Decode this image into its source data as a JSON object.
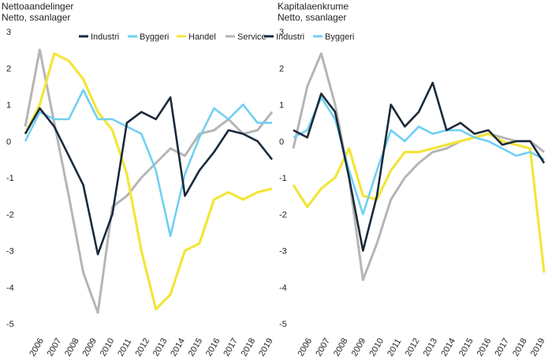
{
  "chart_data": [
    {
      "type": "line",
      "title": "Nettoaandelinger",
      "subtitle": "Netto, ssanlager",
      "ylim": [
        -5,
        3
      ],
      "yticks": [
        -5,
        -4,
        -3,
        -2,
        -1,
        0,
        1,
        2,
        3
      ],
      "ytick_labels": [
        "-5",
        "-4",
        "-3",
        "-2",
        "-1",
        "0",
        "1",
        "2",
        "3"
      ],
      "x_tick_labels": [
        "2006",
        "2007",
        "2008",
        "2009",
        "2010",
        "2011",
        "2012",
        "2013",
        "2014",
        "2015",
        "2016",
        "2017",
        "2018",
        "2019"
      ],
      "colors": {
        "Industri": "#1b2a3a",
        "Byggeri": "#6fd0f2",
        "Handel": "#f3e53a",
        "Service": "#b5b5b5"
      },
      "legend": [
        "Industri",
        "Byggeri",
        "Handel",
        "Service"
      ],
      "series": [
        {
          "name": "Industri",
          "values": [
            0.2,
            0.9,
            0.4,
            -0.4,
            -1.2,
            -3.1,
            -2.0,
            0.5,
            0.8,
            0.6,
            1.2,
            -1.5,
            -0.8,
            -0.3,
            0.3,
            0.2,
            0.0,
            -0.5
          ]
        },
        {
          "name": "Byggeri",
          "values": [
            0.0,
            0.8,
            0.6,
            0.6,
            1.4,
            0.6,
            0.6,
            0.4,
            0.2,
            -0.8,
            -2.6,
            -0.9,
            0.1,
            0.9,
            0.6,
            1.0,
            0.5,
            0.5
          ]
        },
        {
          "name": "Handel",
          "values": [
            0.2,
            1.0,
            2.4,
            2.2,
            1.7,
            0.8,
            0.3,
            -0.9,
            -3.0,
            -4.6,
            -4.2,
            -3.0,
            -2.8,
            -1.6,
            -1.4,
            -1.6,
            -1.4,
            -1.3
          ]
        },
        {
          "name": "Service",
          "values": [
            0.4,
            2.5,
            0.5,
            -1.5,
            -3.6,
            -4.7,
            -1.8,
            -1.5,
            -1.0,
            -0.6,
            -0.2,
            -0.4,
            0.2,
            0.3,
            0.6,
            0.2,
            0.3,
            0.8
          ]
        }
      ]
    },
    {
      "type": "line",
      "title": "Kapitalaenkrume",
      "subtitle": "Netto, ssanlager",
      "ylim": [
        -5,
        3
      ],
      "yticks": [
        -5,
        -4,
        -3,
        -2,
        -1,
        0,
        1,
        2,
        3
      ],
      "ytick_labels": [
        "-5",
        "-4",
        "-3",
        "-2",
        "-1",
        "0",
        "1",
        "2",
        "3"
      ],
      "x_tick_labels": [
        "2006",
        "2007",
        "2008",
        "2009",
        "2010",
        "2011",
        "2012",
        "2013",
        "2014",
        "2015",
        "2016",
        "2017",
        "2018",
        "2019"
      ],
      "colors": {
        "Industri": "#1b2a3a",
        "Byggeri": "#6fd0f2",
        "Handel": "#f3e53a",
        "Service": "#b5b5b5"
      },
      "legend": [
        "Industri",
        "Byggeri"
      ],
      "series": [
        {
          "name": "Industri",
          "values": [
            0.3,
            0.1,
            1.3,
            0.8,
            -1.0,
            -3.0,
            -1.5,
            1.0,
            0.4,
            0.8,
            1.6,
            0.3,
            0.5,
            0.2,
            0.3,
            -0.1,
            0.0,
            0.0,
            -0.6
          ]
        },
        {
          "name": "Byggeri",
          "values": [
            0.1,
            0.3,
            1.2,
            0.6,
            -0.8,
            -2.0,
            -0.8,
            0.3,
            0.0,
            0.4,
            0.2,
            0.3,
            0.3,
            0.1,
            0.0,
            -0.2,
            -0.4,
            -0.3,
            -0.5
          ]
        },
        {
          "name": "Handel",
          "values": [
            -1.2,
            -1.8,
            -1.3,
            -1.0,
            -0.2,
            -1.5,
            -1.6,
            -0.8,
            -0.3,
            -0.3,
            -0.2,
            -0.1,
            0.0,
            0.1,
            0.2,
            0.0,
            -0.1,
            -0.2,
            -3.6
          ]
        },
        {
          "name": "Service",
          "values": [
            -0.2,
            1.5,
            2.4,
            1.0,
            -1.0,
            -3.8,
            -2.8,
            -1.6,
            -1.0,
            -0.6,
            -0.3,
            -0.2,
            0.0,
            0.1,
            0.2,
            0.1,
            0.0,
            0.0,
            -0.3
          ]
        }
      ]
    }
  ]
}
